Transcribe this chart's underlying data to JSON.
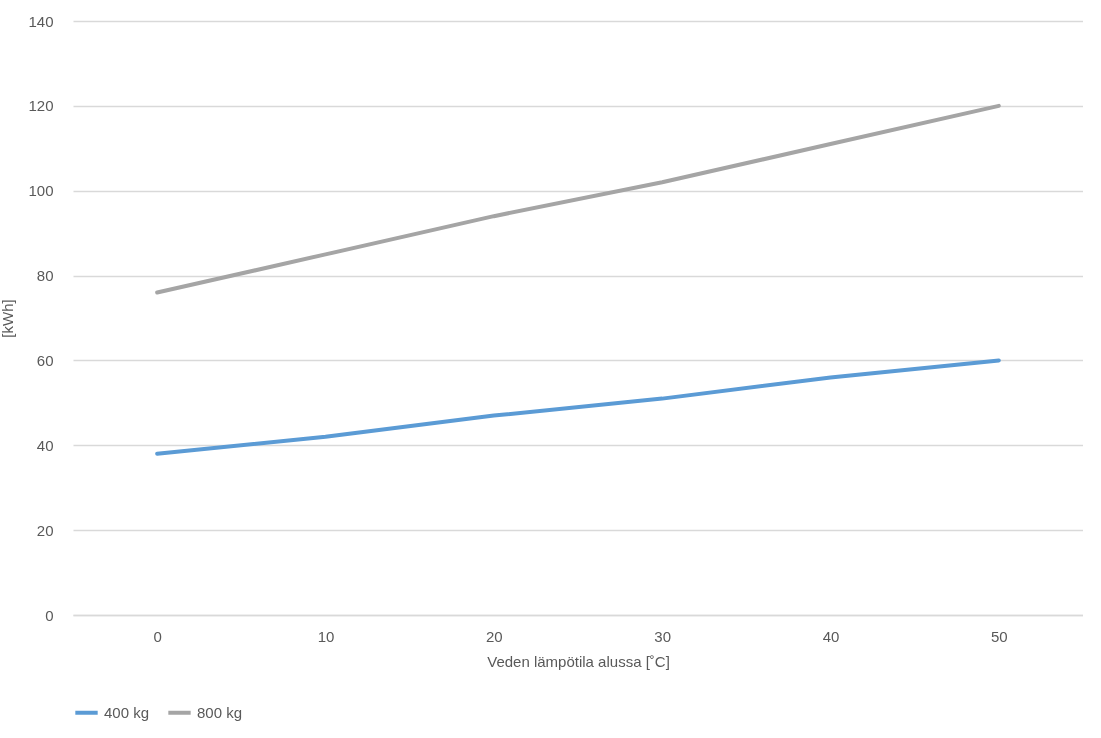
{
  "chart_data": {
    "type": "line",
    "xlabel": "Veden lämpötila alussa [˚C]",
    "ylabel": "[kWh]",
    "categories": [
      "0",
      "10",
      "20",
      "30",
      "40",
      "50"
    ],
    "series": [
      {
        "name": "400 kg",
        "color": "#5b9bd5",
        "values": [
          38,
          42,
          47,
          51,
          56,
          60
        ]
      },
      {
        "name": "800 kg",
        "color": "#a5a5a5",
        "values": [
          76,
          85,
          94,
          102,
          111,
          120
        ]
      }
    ],
    "ylim": [
      0,
      140
    ],
    "yticks": [
      0,
      20,
      40,
      60,
      80,
      100,
      120,
      140
    ],
    "grid": "y",
    "legend": "bottom",
    "line_style": "solid"
  }
}
